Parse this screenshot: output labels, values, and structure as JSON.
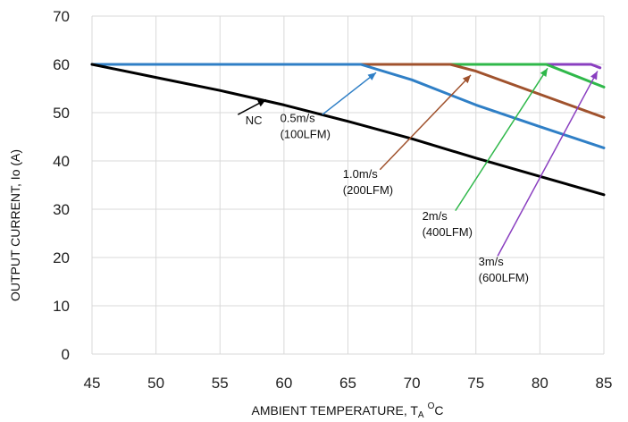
{
  "chart_data": {
    "type": "line",
    "title": "",
    "xlabel": "AMBIENT TEMPERATURE, T",
    "xlabel_subscript": "A",
    "xlabel_superscript": "O",
    "xlabel_unit": "C",
    "ylabel": "OUTPUT CURRENT, Io (A)",
    "xlim": [
      45,
      85
    ],
    "ylim": [
      0,
      70
    ],
    "grid": true,
    "x_ticks": [
      "45",
      "50",
      "55",
      "60",
      "65",
      "70",
      "75",
      "80",
      "85"
    ],
    "y_ticks": [
      "0",
      "10",
      "20",
      "30",
      "40",
      "50",
      "60",
      "70"
    ],
    "series": [
      {
        "name": "NC",
        "color": "#000000",
        "points": [
          [
            45,
            60
          ],
          [
            50,
            57.3
          ],
          [
            55,
            54.6
          ],
          [
            60,
            51.6
          ],
          [
            65,
            48.2
          ],
          [
            70,
            44.6
          ],
          [
            75,
            40.6
          ],
          [
            80,
            36.8
          ],
          [
            85,
            33
          ]
        ]
      },
      {
        "name": "0.5m/s (100LFM)",
        "color": "#2f7fc6",
        "points": [
          [
            45,
            60
          ],
          [
            66,
            60
          ],
          [
            70,
            56.8
          ],
          [
            75,
            51.6
          ],
          [
            80,
            47.1
          ],
          [
            85,
            42.7
          ]
        ]
      },
      {
        "name": "1.0m/s (200LFM)",
        "color": "#a0522d",
        "points": [
          [
            45,
            60
          ],
          [
            73,
            60
          ],
          [
            75,
            58.6
          ],
          [
            80,
            53.8
          ],
          [
            85,
            49
          ]
        ]
      },
      {
        "name": "2m/s (400LFM)",
        "color": "#2fb84a",
        "points": [
          [
            45,
            60
          ],
          [
            80.5,
            60
          ],
          [
            85,
            55.3
          ]
        ]
      },
      {
        "name": "3m/s (600LFM)",
        "color": "#8a3fc0",
        "points": [
          [
            45,
            60
          ],
          [
            84,
            60
          ],
          [
            84.7,
            59.3
          ]
        ]
      }
    ],
    "annotations": [
      {
        "lines": [
          "NC"
        ],
        "text_at": [
          58.3,
          47.6
        ],
        "align": "end",
        "arrow_from": [
          56.4,
          49.6
        ],
        "arrow_to": [
          58.6,
          52.7
        ],
        "color": "#000000"
      },
      {
        "lines": [
          "0.5m/s",
          "(100LFM)"
        ],
        "text_at": [
          59.7,
          48.1
        ],
        "align": "start",
        "arrow_from": [
          63.0,
          49.6
        ],
        "arrow_to": [
          67.2,
          58.3
        ],
        "color": "#2f7fc6"
      },
      {
        "lines": [
          "1.0m/s",
          "(200LFM)"
        ],
        "text_at": [
          64.6,
          36.5
        ],
        "align": "start",
        "arrow_from": [
          67.5,
          38.2
        ],
        "arrow_to": [
          74.6,
          57.8
        ],
        "color": "#a0522d"
      },
      {
        "lines": [
          "2m/s",
          "(400LFM)"
        ],
        "text_at": [
          70.8,
          27.8
        ],
        "align": "start",
        "arrow_from": [
          73.4,
          29.7
        ],
        "arrow_to": [
          80.6,
          59.2
        ],
        "color": "#2fb84a"
      },
      {
        "lines": [
          "3m/s",
          "(600LFM)"
        ],
        "text_at": [
          75.2,
          18.3
        ],
        "align": "start",
        "arrow_from": [
          76.7,
          20.3
        ],
        "arrow_to": [
          84.5,
          58.6
        ],
        "color": "#8a3fc0"
      }
    ]
  }
}
